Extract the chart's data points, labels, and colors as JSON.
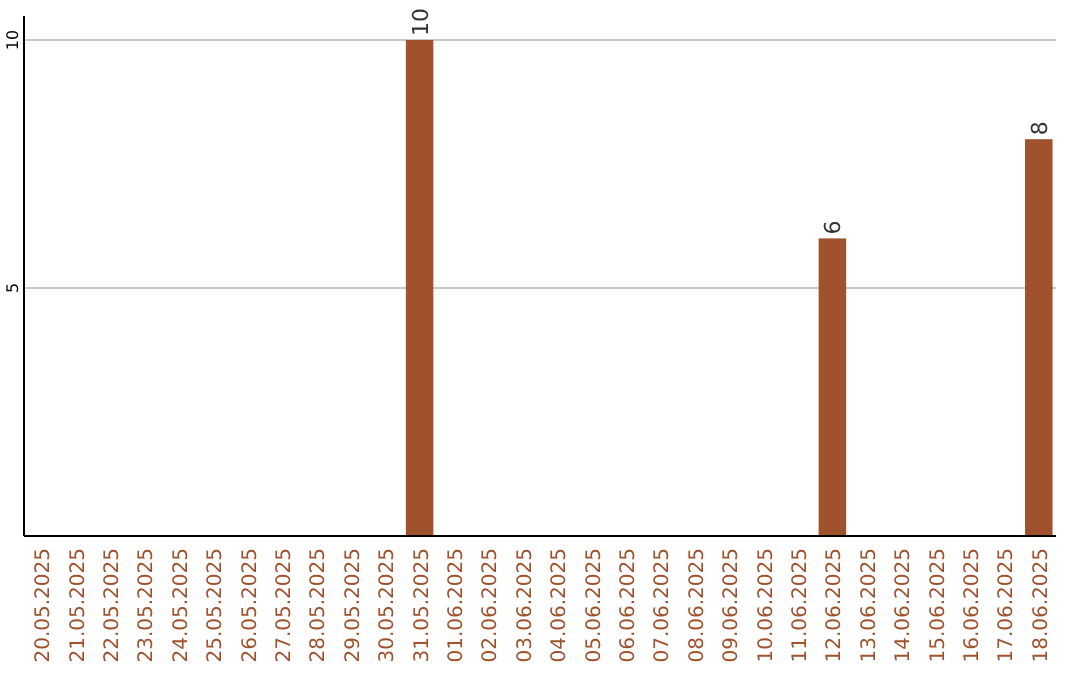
{
  "chart_data": {
    "type": "bar",
    "categories": [
      "20.05.2025",
      "21.05.2025",
      "22.05.2025",
      "23.05.2025",
      "24.05.2025",
      "25.05.2025",
      "26.05.2025",
      "27.05.2025",
      "28.05.2025",
      "29.05.2025",
      "30.05.2025",
      "31.05.2025",
      "01.06.2025",
      "02.06.2025",
      "03.06.2025",
      "04.06.2025",
      "05.06.2025",
      "06.06.2025",
      "07.06.2025",
      "08.06.2025",
      "09.06.2025",
      "10.06.2025",
      "11.06.2025",
      "12.06.2025",
      "13.06.2025",
      "14.06.2025",
      "15.06.2025",
      "16.06.2025",
      "17.06.2025",
      "18.06.2025"
    ],
    "values": [
      0,
      0,
      0,
      0,
      0,
      0,
      0,
      0,
      0,
      0,
      0,
      10,
      0,
      0,
      0,
      0,
      0,
      0,
      0,
      0,
      0,
      0,
      0,
      6,
      0,
      0,
      0,
      0,
      0,
      8
    ],
    "value_labels": [
      null,
      null,
      null,
      null,
      null,
      null,
      null,
      null,
      null,
      null,
      null,
      "10",
      null,
      null,
      null,
      null,
      null,
      null,
      null,
      null,
      null,
      null,
      null,
      "6",
      null,
      null,
      null,
      null,
      null,
      "8"
    ],
    "color": "#a0522d",
    "ylim": [
      0,
      10
    ],
    "yticks": [
      5,
      10
    ],
    "grid": "y"
  }
}
